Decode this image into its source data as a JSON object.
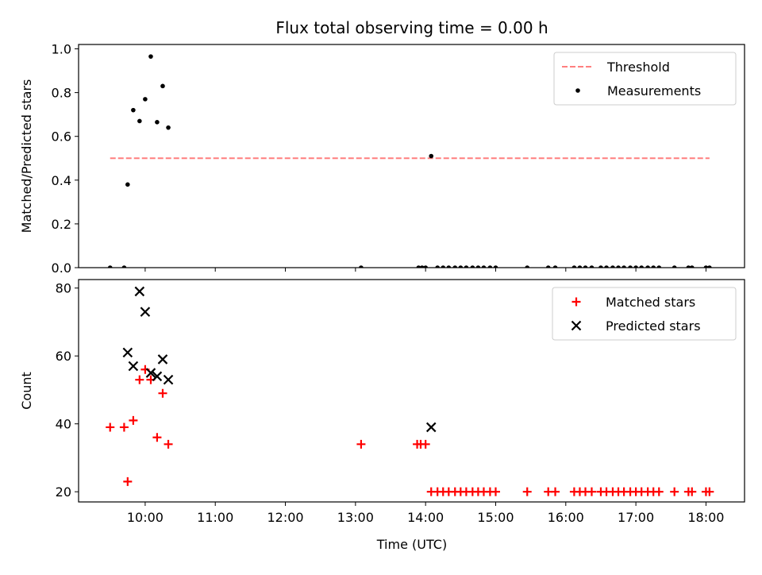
{
  "chart_data": {
    "title": "Flux total observing time = 0.00 h",
    "x_tick_labels": [
      "10:00",
      "11:00",
      "12:00",
      "13:00",
      "14:00",
      "15:00",
      "16:00",
      "17:00",
      "18:00"
    ],
    "x_ticks_hours": [
      10,
      11,
      12,
      13,
      14,
      15,
      16,
      17,
      18
    ],
    "xlabel": "Time (UTC)",
    "xlim_hours": [
      9.05,
      18.55
    ],
    "panels": [
      {
        "type": "scatter",
        "ylabel": "Matched/Predicted stars",
        "ylim": [
          0,
          1.02
        ],
        "y_ticks": [
          0.0,
          0.2,
          0.4,
          0.6,
          0.8,
          1.0
        ],
        "y_tick_labels": [
          "0.0",
          "0.2",
          "0.4",
          "0.6",
          "0.8",
          "1.0"
        ],
        "legend_position": "upper right",
        "threshold": {
          "name": "Threshold",
          "value": 0.5,
          "x_start": 9.5,
          "x_end": 18.05,
          "color": "#ff7f7f",
          "style": "dashed"
        },
        "series": [
          {
            "name": "Measurements",
            "color": "#000000",
            "marker": "dot",
            "points": [
              [
                9.5,
                0.0
              ],
              [
                9.7,
                0.0
              ],
              [
                9.75,
                0.38
              ],
              [
                9.83,
                0.72
              ],
              [
                9.92,
                0.67
              ],
              [
                10.0,
                0.77
              ],
              [
                10.08,
                0.965
              ],
              [
                10.17,
                0.665
              ],
              [
                10.25,
                0.83
              ],
              [
                10.33,
                0.64
              ],
              [
                13.08,
                0.0
              ],
              [
                13.9,
                0.0
              ],
              [
                13.95,
                0.0
              ],
              [
                14.0,
                0.0
              ],
              [
                14.08,
                0.51
              ],
              [
                14.17,
                0.0
              ],
              [
                14.25,
                0.0
              ],
              [
                14.33,
                0.0
              ],
              [
                14.42,
                0.0
              ],
              [
                14.5,
                0.0
              ],
              [
                14.58,
                0.0
              ],
              [
                14.67,
                0.0
              ],
              [
                14.75,
                0.0
              ],
              [
                14.83,
                0.0
              ],
              [
                14.92,
                0.0
              ],
              [
                15.0,
                0.0
              ],
              [
                15.45,
                0.0
              ],
              [
                15.75,
                0.0
              ],
              [
                15.85,
                0.0
              ],
              [
                16.12,
                0.0
              ],
              [
                16.2,
                0.0
              ],
              [
                16.28,
                0.0
              ],
              [
                16.37,
                0.0
              ],
              [
                16.5,
                0.0
              ],
              [
                16.58,
                0.0
              ],
              [
                16.67,
                0.0
              ],
              [
                16.75,
                0.0
              ],
              [
                16.83,
                0.0
              ],
              [
                16.92,
                0.0
              ],
              [
                17.0,
                0.0
              ],
              [
                17.08,
                0.0
              ],
              [
                17.17,
                0.0
              ],
              [
                17.25,
                0.0
              ],
              [
                17.33,
                0.0
              ],
              [
                17.55,
                0.0
              ],
              [
                17.75,
                0.0
              ],
              [
                17.8,
                0.0
              ],
              [
                18.0,
                0.0
              ],
              [
                18.05,
                0.0
              ]
            ]
          }
        ]
      },
      {
        "type": "scatter",
        "ylabel": "Count",
        "ylim": [
          17,
          82.5
        ],
        "y_ticks": [
          20,
          40,
          60,
          80
        ],
        "y_tick_labels": [
          "20",
          "40",
          "60",
          "80"
        ],
        "legend_position": "upper right",
        "series": [
          {
            "name": "Matched stars",
            "color": "#ff0000",
            "marker": "plus",
            "points": [
              [
                9.5,
                39
              ],
              [
                9.7,
                39
              ],
              [
                9.75,
                23
              ],
              [
                9.83,
                41
              ],
              [
                9.92,
                53
              ],
              [
                10.0,
                56
              ],
              [
                10.08,
                53
              ],
              [
                10.17,
                36
              ],
              [
                10.25,
                49
              ],
              [
                10.33,
                34
              ],
              [
                13.08,
                34
              ],
              [
                13.88,
                34
              ],
              [
                13.93,
                34
              ],
              [
                14.0,
                34
              ],
              [
                14.08,
                20
              ],
              [
                14.17,
                20
              ],
              [
                14.25,
                20
              ],
              [
                14.33,
                20
              ],
              [
                14.42,
                20
              ],
              [
                14.5,
                20
              ],
              [
                14.58,
                20
              ],
              [
                14.67,
                20
              ],
              [
                14.75,
                20
              ],
              [
                14.83,
                20
              ],
              [
                14.92,
                20
              ],
              [
                15.0,
                20
              ],
              [
                15.45,
                20
              ],
              [
                15.75,
                20
              ],
              [
                15.85,
                20
              ],
              [
                16.12,
                20
              ],
              [
                16.2,
                20
              ],
              [
                16.28,
                20
              ],
              [
                16.37,
                20
              ],
              [
                16.5,
                20
              ],
              [
                16.58,
                20
              ],
              [
                16.67,
                20
              ],
              [
                16.75,
                20
              ],
              [
                16.83,
                20
              ],
              [
                16.92,
                20
              ],
              [
                17.0,
                20
              ],
              [
                17.08,
                20
              ],
              [
                17.17,
                20
              ],
              [
                17.25,
                20
              ],
              [
                17.33,
                20
              ],
              [
                17.55,
                20
              ],
              [
                17.75,
                20
              ],
              [
                17.8,
                20
              ],
              [
                18.0,
                20
              ],
              [
                18.05,
                20
              ]
            ]
          },
          {
            "name": "Predicted stars",
            "color": "#000000",
            "marker": "x",
            "points": [
              [
                9.75,
                61
              ],
              [
                9.83,
                57
              ],
              [
                9.92,
                79
              ],
              [
                10.0,
                73
              ],
              [
                10.08,
                55
              ],
              [
                10.17,
                54
              ],
              [
                10.25,
                59
              ],
              [
                10.33,
                53
              ],
              [
                14.08,
                39
              ]
            ]
          }
        ]
      }
    ]
  }
}
